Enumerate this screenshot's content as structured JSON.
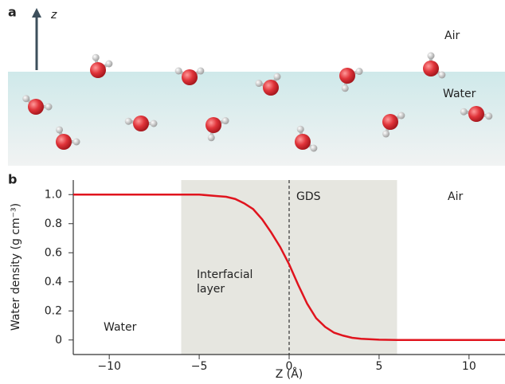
{
  "panel_a": {
    "label": "a",
    "axis_label": "z",
    "top_label": "Air",
    "bottom_label": "Water"
  },
  "chart_data": {
    "type": "line",
    "panel_label": "b",
    "xlabel": "Z (Å)",
    "ylabel": "Water density (g cm⁻³)",
    "x": [
      -12,
      -11,
      -10,
      -9,
      -8,
      -7,
      -6,
      -5,
      -4,
      -3.5,
      -3,
      -2.5,
      -2,
      -1.5,
      -1,
      -0.5,
      0,
      0.5,
      1,
      1.5,
      2,
      2.5,
      3,
      3.5,
      4,
      5,
      6,
      7,
      8,
      9,
      10,
      11,
      12
    ],
    "values": [
      1.0,
      1.0,
      1.0,
      1.0,
      1.0,
      1.0,
      1.0,
      1.0,
      0.99,
      0.985,
      0.97,
      0.94,
      0.9,
      0.83,
      0.74,
      0.64,
      0.52,
      0.38,
      0.25,
      0.15,
      0.09,
      0.05,
      0.03,
      0.015,
      0.008,
      0.002,
      0,
      0,
      0,
      0,
      0,
      0,
      0
    ],
    "color": "#e0141e",
    "xlim": [
      -12,
      12
    ],
    "ylim": [
      -0.1,
      1.1
    ],
    "xticks": [
      {
        "value": -10,
        "label": "−10"
      },
      {
        "value": -5,
        "label": "−5"
      },
      0,
      5,
      10
    ],
    "yticks": [
      0,
      0.2,
      0.4,
      0.6,
      0.8,
      {
        "value": 1,
        "label": "1.0"
      }
    ],
    "shaded_region": {
      "xlim": [
        -6,
        6
      ],
      "color": "#e6e6e0"
    },
    "vline": 0,
    "annotations": [
      "GDS",
      "Air",
      "Interfacial",
      "layer",
      "Water"
    ]
  }
}
